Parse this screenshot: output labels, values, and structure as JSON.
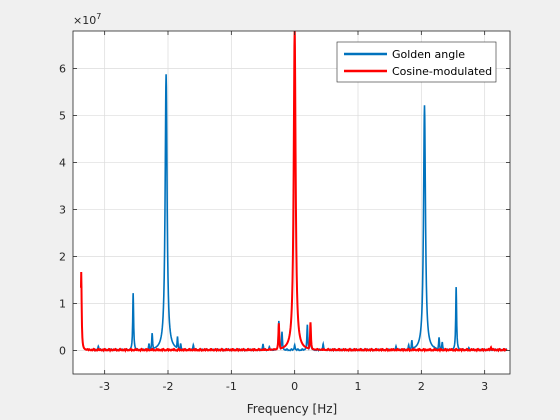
{
  "chart_data": {
    "type": "line",
    "xlabel": "Frequency [Hz]",
    "ylabel": "",
    "y_exponent_label": "×10",
    "y_exponent_power": "7",
    "xlim": [
      -3.5,
      3.4
    ],
    "ylim": [
      -5000000,
      68000000
    ],
    "grid": true,
    "legend_position": "top-right",
    "x_ticks": [
      -3,
      -2,
      -1,
      0,
      1,
      2,
      3
    ],
    "x_tick_labels": [
      "-3",
      "-2",
      "-1",
      "0",
      "1",
      "2",
      "3"
    ],
    "y_ticks": [
      0,
      10000000,
      20000000,
      30000000,
      40000000,
      50000000,
      60000000
    ],
    "y_tick_labels": [
      "0",
      "1",
      "2",
      "3",
      "4",
      "5",
      "6"
    ],
    "series": [
      {
        "name": "Golden angle",
        "color": "#0072bd",
        "spikes": [
          {
            "x": -3.1,
            "y": 900000
          },
          {
            "x": -2.55,
            "y": 12200000
          },
          {
            "x": -2.3,
            "y": 1500000
          },
          {
            "x": -2.25,
            "y": 3700000
          },
          {
            "x": -2.15,
            "y": 1200000
          },
          {
            "x": -2.03,
            "y": 58800000
          },
          {
            "x": -1.85,
            "y": 3000000
          },
          {
            "x": -1.8,
            "y": 1500000
          },
          {
            "x": -1.6,
            "y": 1200000
          },
          {
            "x": -0.5,
            "y": 1400000
          },
          {
            "x": -0.4,
            "y": 800000
          },
          {
            "x": -0.25,
            "y": 6300000
          },
          {
            "x": -0.2,
            "y": 4000000
          },
          {
            "x": 0.0,
            "y": 1200000
          },
          {
            "x": 0.2,
            "y": 5500000
          },
          {
            "x": 0.25,
            "y": 4000000
          },
          {
            "x": 0.45,
            "y": 1400000
          },
          {
            "x": 1.6,
            "y": 900000
          },
          {
            "x": 1.8,
            "y": 1200000
          },
          {
            "x": 1.85,
            "y": 2200000
          },
          {
            "x": 2.05,
            "y": 52200000
          },
          {
            "x": 2.2,
            "y": 800000
          },
          {
            "x": 2.28,
            "y": 2800000
          },
          {
            "x": 2.33,
            "y": 1800000
          },
          {
            "x": 2.55,
            "y": 13500000
          },
          {
            "x": 2.75,
            "y": 600000
          }
        ]
      },
      {
        "name": "Cosine-modulated",
        "color": "#ff0000",
        "spikes": [
          {
            "x": -3.37,
            "y": 16700000
          },
          {
            "x": -0.25,
            "y": 5800000
          },
          {
            "x": 0.0,
            "y": 68000000
          },
          {
            "x": 0.25,
            "y": 6000000
          },
          {
            "x": 3.1,
            "y": 700000
          }
        ]
      }
    ]
  }
}
